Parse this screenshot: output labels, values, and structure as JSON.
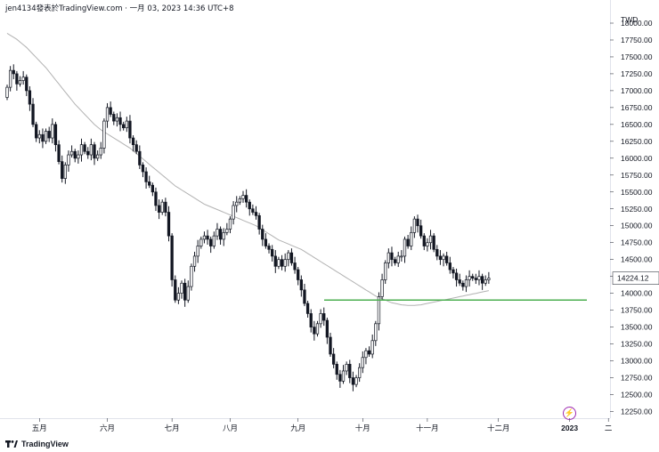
{
  "header": {
    "text": "jen4134發表於TradingView.com · 一月 03, 2023 14:36 UTC+8"
  },
  "branding": {
    "logo_text": "TradingView"
  },
  "chart_data": {
    "type": "candlestick",
    "currency": "TWD",
    "current_price": "14224.12",
    "ylim": [
      12000,
      18400
    ],
    "y_ticks": [
      12250,
      12500,
      12750,
      13000,
      13250,
      13500,
      13750,
      14000,
      14250,
      14500,
      14750,
      15000,
      15250,
      15500,
      15750,
      16000,
      16250,
      16500,
      16750,
      17000,
      17250,
      17500,
      17750,
      18000
    ],
    "y_tick_labels": [
      "12250.00",
      "12500.00",
      "12750.00",
      "13000.00",
      "13250.00",
      "13500.00",
      "13750.00",
      "14000.00",
      "14250.00",
      "14500.00",
      "14750.00",
      "15000.00",
      "15250.00",
      "15500.00",
      "15750.00",
      "16000.00",
      "16250.00",
      "16500.00",
      "16750.00",
      "17000.00",
      "17250.00",
      "17500.00",
      "17750.00",
      "18000.00"
    ],
    "x_labels": [
      {
        "label": "五月",
        "index": 10
      },
      {
        "label": "六月",
        "index": 31
      },
      {
        "label": "七月",
        "index": 51
      },
      {
        "label": "八月",
        "index": 69
      },
      {
        "label": "九月",
        "index": 90
      },
      {
        "label": "十月",
        "index": 110
      },
      {
        "label": "十一月",
        "index": 130
      },
      {
        "label": "十二月",
        "index": 152
      },
      {
        "label": "2023",
        "index": 174
      },
      {
        "label": "二",
        "index": 186
      }
    ],
    "support_level": 13900,
    "support_color": "#4caf50",
    "up_color": "#ffffff",
    "down_color": "#131722",
    "ma_color": "#b2b2b2",
    "closes": [
      17050,
      17300,
      17250,
      17100,
      17150,
      17200,
      17000,
      16800,
      16500,
      16300,
      16350,
      16250,
      16400,
      16300,
      16500,
      16200,
      15950,
      15700,
      15900,
      16050,
      16100,
      16000,
      16050,
      16200,
      16100,
      16050,
      16200,
      16000,
      16050,
      16150,
      16550,
      16750,
      16650,
      16550,
      16600,
      16500,
      16450,
      16550,
      16300,
      16200,
      16100,
      15900,
      15800,
      15650,
      15600,
      15500,
      15300,
      15200,
      15350,
      15200,
      14850,
      14200,
      13900,
      14000,
      14150,
      13900,
      14100,
      14400,
      14550,
      14700,
      14800,
      14850,
      14800,
      14700,
      14850,
      14950,
      14800,
      14900,
      14950,
      15100,
      15300,
      15350,
      15400,
      15450,
      15350,
      15250,
      15200,
      15150,
      14950,
      14800,
      14700,
      14650,
      14550,
      14400,
      14500,
      14400,
      14500,
      14600,
      14450,
      14350,
      14200,
      14050,
      13850,
      13700,
      13500,
      13400,
      13550,
      13700,
      13600,
      13350,
      13100,
      12950,
      12800,
      12700,
      12850,
      12950,
      12750,
      12650,
      12750,
      12900,
      13050,
      13150,
      13100,
      13300,
      13550,
      13950,
      14200,
      14450,
      14600,
      14500,
      14450,
      14550,
      14550,
      14800,
      14700,
      14900,
      15100,
      15000,
      14850,
      14700,
      14750,
      14850,
      14650,
      14550,
      14500,
      14550,
      14450,
      14350,
      14300,
      14200,
      14150,
      14100,
      14200,
      14250,
      14224.12,
      14200,
      14250,
      14150,
      14200,
      14224.12
    ],
    "opens": [
      16900,
      17050,
      17300,
      17250,
      17100,
      17150,
      17200,
      17000,
      16800,
      16500,
      16300,
      16350,
      16250,
      16400,
      16300,
      16500,
      16200,
      15950,
      15700,
      15900,
      16050,
      16100,
      16000,
      16050,
      16200,
      16100,
      16050,
      16200,
      16000,
      16050,
      16150,
      16550,
      16750,
      16650,
      16550,
      16600,
      16500,
      16450,
      16550,
      16300,
      16200,
      16100,
      15900,
      15800,
      15650,
      15600,
      15500,
      15300,
      15200,
      15350,
      15200,
      14850,
      14200,
      13900,
      14000,
      14150,
      13900,
      14100,
      14400,
      14550,
      14700,
      14800,
      14850,
      14800,
      14700,
      14850,
      14950,
      14800,
      14900,
      14950,
      15100,
      15300,
      15350,
      15400,
      15450,
      15350,
      15250,
      15200,
      15150,
      14950,
      14800,
      14700,
      14650,
      14550,
      14400,
      14500,
      14400,
      14500,
      14600,
      14450,
      14350,
      14200,
      14050,
      13850,
      13700,
      13500,
      13400,
      13550,
      13700,
      13600,
      13350,
      13100,
      12950,
      12800,
      12700,
      12850,
      12950,
      12750,
      12650,
      12750,
      12900,
      13050,
      13150,
      13100,
      13300,
      13550,
      13950,
      14200,
      14450,
      14600,
      14500,
      14450,
      14550,
      14550,
      14800,
      14700,
      14900,
      15100,
      15000,
      14850,
      14700,
      14750,
      14850,
      14650,
      14550,
      14500,
      14550,
      14450,
      14350,
      14300,
      14200,
      14150,
      14100,
      14200,
      14250,
      14224.12,
      14200,
      14250,
      14150,
      14200
    ],
    "ma": [
      17850,
      17820,
      17790,
      17760,
      17720,
      17680,
      17640,
      17590,
      17540,
      17490,
      17440,
      17390,
      17340,
      17280,
      17220,
      17160,
      17100,
      17040,
      16980,
      16920,
      16860,
      16800,
      16750,
      16700,
      16650,
      16600,
      16550,
      16500,
      16460,
      16420,
      16390,
      16360,
      16330,
      16300,
      16270,
      16240,
      16210,
      16180,
      16150,
      16110,
      16070,
      16030,
      15990,
      15950,
      15910,
      15870,
      15830,
      15790,
      15750,
      15710,
      15670,
      15630,
      15590,
      15560,
      15530,
      15500,
      15470,
      15440,
      15410,
      15380,
      15350,
      15320,
      15300,
      15280,
      15260,
      15240,
      15220,
      15200,
      15180,
      15160,
      15140,
      15120,
      15100,
      15080,
      15060,
      15040,
      15020,
      15000,
      14970,
      14940,
      14910,
      14880,
      14850,
      14820,
      14790,
      14770,
      14750,
      14730,
      14710,
      14690,
      14670,
      14650,
      14620,
      14590,
      14560,
      14530,
      14500,
      14470,
      14440,
      14410,
      14380,
      14350,
      14320,
      14290,
      14260,
      14230,
      14200,
      14170,
      14140,
      14110,
      14080,
      14050,
      14020,
      13990,
      13960,
      13940,
      13920,
      13900,
      13880,
      13860,
      13850,
      13840,
      13830,
      13825,
      13820,
      13820,
      13820,
      13825,
      13830,
      13840,
      13850,
      13860,
      13870,
      13880,
      13890,
      13900,
      13910,
      13920,
      13930,
      13940,
      13950,
      13960,
      13970,
      13980,
      13990,
      14000,
      14010,
      14020,
      14030,
      14040
    ]
  }
}
